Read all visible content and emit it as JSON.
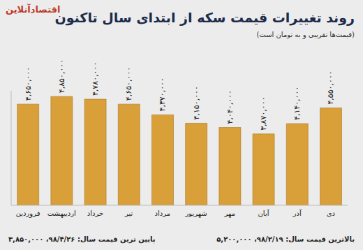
{
  "chart_data": {
    "type": "bar",
    "title": "روند تغییرات قیمت سکه از ابتدای سال تاکنون",
    "subtitle": "(قیمت‌ها تقریبی و به تومان است)",
    "source": "اقتصادآنلاین",
    "categories": [
      "فروردین",
      "اردیبهشت",
      "خرداد",
      "تیر",
      "مرداد",
      "شهریور",
      "مهر",
      "آبان",
      "آذر",
      "دی"
    ],
    "values": [
      4650000,
      4850000,
      4780000,
      4650000,
      4370000,
      4150000,
      4040000,
      3870000,
      4140000,
      4550000
    ],
    "value_labels": [
      "۴,۶۵۰,۰۰۰",
      "۴,۸۵۰,۰۰۰",
      "۴,۷۸۰,۰۰۰",
      "۴,۶۵۰,۰۰۰",
      "۴,۳۷۰,۰۰۰",
      "۴,۱۵۰,۰۰۰",
      "۴,۰۴۰,۰۰۰",
      "۳,۸۷۰,۰۰۰",
      "۴,۱۴۰,۰۰۰",
      "۴,۵۵۰,۰۰۰"
    ],
    "annotations": [
      "بالاترین قیمت سال: ۹۸/۲/۱۹، ۵,۲۰۰,۰۰۰",
      "پایین ترین قیمت سال: ۹۸/۴/۲۶، ۳,۸۵۰,۰۰۰"
    ],
    "color": "#d9a03a",
    "ylim": [
      2000000,
      5000000
    ],
    "data_labels": true,
    "tick_labels": "x",
    "grid": false
  }
}
